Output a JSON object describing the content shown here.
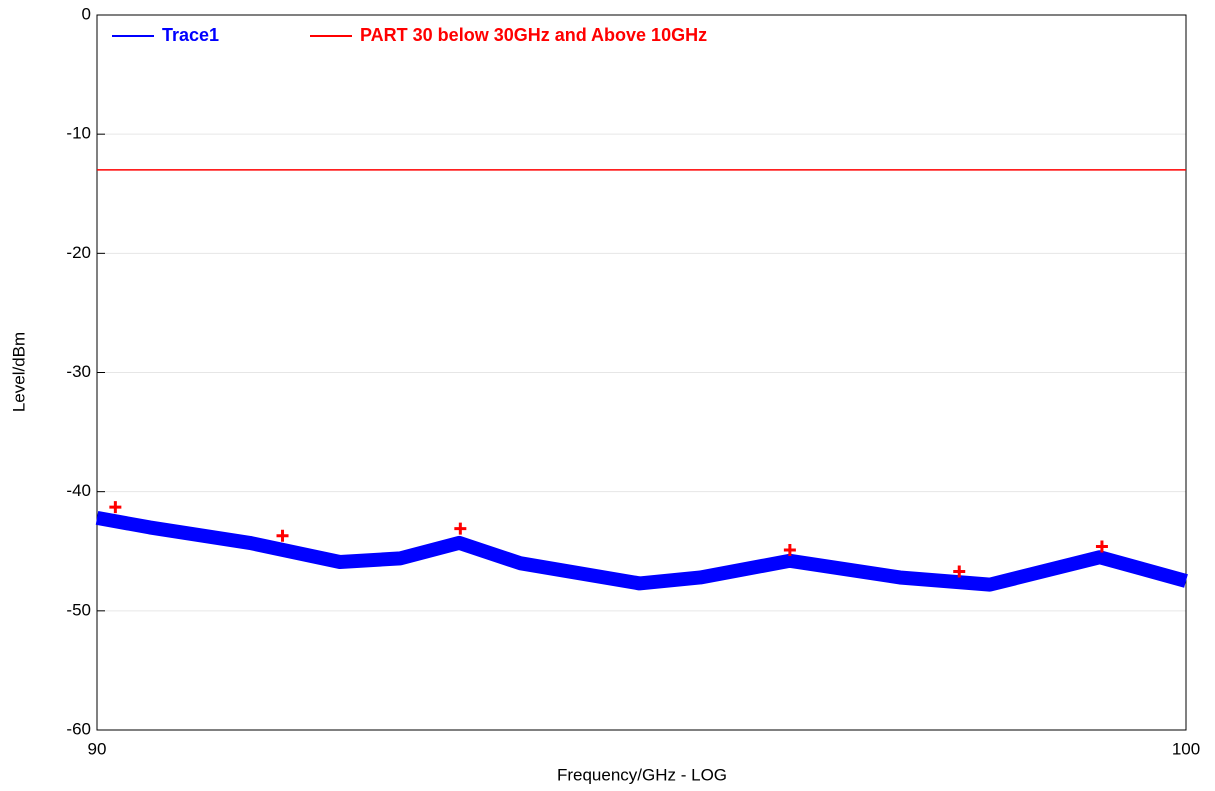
{
  "chart_data": {
    "type": "line",
    "xlabel": "Frequency/GHz - LOG",
    "ylabel": "Level/dBm",
    "xscale": "log",
    "xlim": [
      90,
      100
    ],
    "xticks": [
      90,
      100
    ],
    "ylim": [
      -60,
      0
    ],
    "yticks": [
      0,
      -10,
      -20,
      -30,
      -40,
      -50,
      -60
    ],
    "grid": true,
    "series": [
      {
        "name": "Trace1",
        "color": "#0000ff",
        "x": [
          90,
          90.46,
          91.34,
          92.14,
          92.68,
          93.21,
          93.76,
          94.85,
          95.41,
          96.24,
          97.27,
          98.12,
          99.17,
          100
        ],
        "values": [
          -42.2,
          -43,
          -44.3,
          -45.9,
          -45.6,
          -44.3,
          -46,
          -47.7,
          -47.2,
          -45.8,
          -47.2,
          -47.8,
          -45.5,
          -47.5
        ]
      },
      {
        "name": "PART 30 below 30GHz and Above 10GHz",
        "color": "#ff0000",
        "x": [
          90,
          100
        ],
        "values": [
          -13,
          -13
        ]
      }
    ],
    "markers": {
      "color": "#ff0000",
      "x": [
        90.16,
        91.63,
        93.22,
        96.24,
        97.83,
        99.19
      ],
      "values": [
        -41.3,
        -43.7,
        -43.1,
        -44.9,
        -46.7,
        -44.6
      ]
    }
  }
}
